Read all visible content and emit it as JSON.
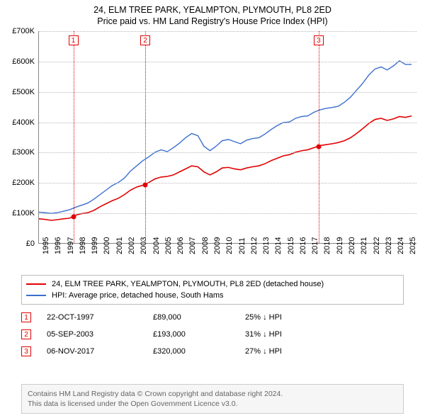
{
  "title_line1": "24, ELM TREE PARK, YEALMPTON, PLYMOUTH, PL8 2ED",
  "title_line2": "Price paid vs. HM Land Registry's House Price Index (HPI)",
  "chart": {
    "type": "line",
    "background_color": "#ffffff",
    "grid_color": "#b8b8b8",
    "axis_color": "#888888",
    "label_fontsize": 11,
    "title_fontsize": 12.5,
    "x": {
      "min": 1995,
      "max": 2025.9,
      "ticks": [
        1995,
        1996,
        1997,
        1998,
        1999,
        2000,
        2001,
        2002,
        2003,
        2004,
        2005,
        2006,
        2007,
        2008,
        2009,
        2010,
        2011,
        2012,
        2013,
        2014,
        2015,
        2016,
        2017,
        2018,
        2019,
        2020,
        2021,
        2022,
        2023,
        2024,
        2025
      ]
    },
    "y": {
      "min": 0,
      "max": 700000,
      "ticks": [
        0,
        100000,
        200000,
        300000,
        400000,
        500000,
        600000,
        700000
      ],
      "tick_labels": [
        "£0",
        "£100K",
        "£200K",
        "£300K",
        "£400K",
        "£500K",
        "£600K",
        "£700K"
      ]
    },
    "series": [
      {
        "id": "property",
        "label": "24, ELM TREE PARK, YEALMPTON, PLYMOUTH, PL8 2ED (detached house)",
        "color": "#e10000",
        "line_width": 1.6,
        "data": [
          [
            1995.0,
            80000
          ],
          [
            1995.5,
            78000
          ],
          [
            1996.0,
            75000
          ],
          [
            1996.5,
            77000
          ],
          [
            1997.0,
            80000
          ],
          [
            1997.5,
            82000
          ],
          [
            1997.81,
            89000
          ],
          [
            1998.0,
            92000
          ],
          [
            1998.5,
            97000
          ],
          [
            1999.0,
            100000
          ],
          [
            1999.5,
            108000
          ],
          [
            2000.0,
            120000
          ],
          [
            2000.5,
            130000
          ],
          [
            2001.0,
            140000
          ],
          [
            2001.5,
            148000
          ],
          [
            2002.0,
            160000
          ],
          [
            2002.5,
            175000
          ],
          [
            2003.0,
            185000
          ],
          [
            2003.68,
            193000
          ],
          [
            2004.0,
            200000
          ],
          [
            2004.5,
            212000
          ],
          [
            2005.0,
            218000
          ],
          [
            2005.5,
            220000
          ],
          [
            2006.0,
            225000
          ],
          [
            2006.5,
            235000
          ],
          [
            2007.0,
            245000
          ],
          [
            2007.5,
            255000
          ],
          [
            2008.0,
            252000
          ],
          [
            2008.5,
            235000
          ],
          [
            2009.0,
            225000
          ],
          [
            2009.5,
            235000
          ],
          [
            2010.0,
            248000
          ],
          [
            2010.5,
            250000
          ],
          [
            2011.0,
            245000
          ],
          [
            2011.5,
            242000
          ],
          [
            2012.0,
            248000
          ],
          [
            2012.5,
            252000
          ],
          [
            2013.0,
            255000
          ],
          [
            2013.5,
            262000
          ],
          [
            2014.0,
            272000
          ],
          [
            2014.5,
            280000
          ],
          [
            2015.0,
            288000
          ],
          [
            2015.5,
            292000
          ],
          [
            2016.0,
            300000
          ],
          [
            2016.5,
            305000
          ],
          [
            2017.0,
            308000
          ],
          [
            2017.5,
            315000
          ],
          [
            2017.85,
            320000
          ],
          [
            2018.0,
            322000
          ],
          [
            2018.5,
            325000
          ],
          [
            2019.0,
            328000
          ],
          [
            2019.5,
            332000
          ],
          [
            2020.0,
            338000
          ],
          [
            2020.5,
            348000
          ],
          [
            2021.0,
            362000
          ],
          [
            2021.5,
            378000
          ],
          [
            2022.0,
            395000
          ],
          [
            2022.5,
            408000
          ],
          [
            2023.0,
            412000
          ],
          [
            2023.5,
            405000
          ],
          [
            2024.0,
            410000
          ],
          [
            2024.5,
            418000
          ],
          [
            2025.0,
            415000
          ],
          [
            2025.5,
            420000
          ]
        ]
      },
      {
        "id": "hpi",
        "label": "HPI: Average price, detached house, South Hams",
        "color": "#3b6fcf",
        "line_width": 1.4,
        "data": [
          [
            1995.0,
            102000
          ],
          [
            1995.5,
            100000
          ],
          [
            1996.0,
            98000
          ],
          [
            1996.5,
            100000
          ],
          [
            1997.0,
            105000
          ],
          [
            1997.5,
            110000
          ],
          [
            1998.0,
            118000
          ],
          [
            1998.5,
            125000
          ],
          [
            1999.0,
            132000
          ],
          [
            1999.5,
            145000
          ],
          [
            2000.0,
            160000
          ],
          [
            2000.5,
            175000
          ],
          [
            2001.0,
            190000
          ],
          [
            2001.5,
            200000
          ],
          [
            2002.0,
            215000
          ],
          [
            2002.5,
            238000
          ],
          [
            2003.0,
            255000
          ],
          [
            2003.5,
            272000
          ],
          [
            2004.0,
            285000
          ],
          [
            2004.5,
            300000
          ],
          [
            2005.0,
            308000
          ],
          [
            2005.5,
            302000
          ],
          [
            2006.0,
            315000
          ],
          [
            2006.5,
            330000
          ],
          [
            2007.0,
            348000
          ],
          [
            2007.5,
            362000
          ],
          [
            2008.0,
            355000
          ],
          [
            2008.5,
            320000
          ],
          [
            2009.0,
            305000
          ],
          [
            2009.5,
            320000
          ],
          [
            2010.0,
            338000
          ],
          [
            2010.5,
            342000
          ],
          [
            2011.0,
            335000
          ],
          [
            2011.5,
            328000
          ],
          [
            2012.0,
            340000
          ],
          [
            2012.5,
            345000
          ],
          [
            2013.0,
            348000
          ],
          [
            2013.5,
            360000
          ],
          [
            2014.0,
            375000
          ],
          [
            2014.5,
            388000
          ],
          [
            2015.0,
            398000
          ],
          [
            2015.5,
            400000
          ],
          [
            2016.0,
            412000
          ],
          [
            2016.5,
            418000
          ],
          [
            2017.0,
            420000
          ],
          [
            2017.5,
            432000
          ],
          [
            2018.0,
            440000
          ],
          [
            2018.5,
            445000
          ],
          [
            2019.0,
            448000
          ],
          [
            2019.5,
            452000
          ],
          [
            2020.0,
            465000
          ],
          [
            2020.5,
            482000
          ],
          [
            2021.0,
            505000
          ],
          [
            2021.5,
            528000
          ],
          [
            2022.0,
            555000
          ],
          [
            2022.5,
            575000
          ],
          [
            2023.0,
            582000
          ],
          [
            2023.5,
            572000
          ],
          [
            2024.0,
            585000
          ],
          [
            2024.5,
            602000
          ],
          [
            2025.0,
            590000
          ],
          [
            2025.5,
            590000
          ]
        ]
      }
    ],
    "sale_markers": [
      {
        "n": "1",
        "x": 1997.81,
        "y": 89000,
        "color": "#e10000"
      },
      {
        "n": "2",
        "x": 2003.68,
        "y": 193000,
        "color": "#e10000"
      },
      {
        "n": "3",
        "x": 2017.85,
        "y": 320000,
        "color": "#e10000"
      }
    ]
  },
  "legend": {
    "rows": [
      {
        "color": "#e10000",
        "label": "24, ELM TREE PARK, YEALMPTON, PLYMOUTH, PL8 2ED (detached house)"
      },
      {
        "color": "#3b6fcf",
        "label": "HPI: Average price, detached house, South Hams"
      }
    ]
  },
  "sales": [
    {
      "n": "1",
      "color": "#e10000",
      "date": "22-OCT-1997",
      "price": "£89,000",
      "diff": "25% ↓ HPI"
    },
    {
      "n": "2",
      "color": "#e10000",
      "date": "05-SEP-2003",
      "price": "£193,000",
      "diff": "31% ↓ HPI"
    },
    {
      "n": "3",
      "color": "#e10000",
      "date": "06-NOV-2017",
      "price": "£320,000",
      "diff": "27% ↓ HPI"
    }
  ],
  "footer": {
    "line1": "Contains HM Land Registry data © Crown copyright and database right 2024.",
    "line2": "This data is licensed under the Open Government Licence v3.0."
  }
}
